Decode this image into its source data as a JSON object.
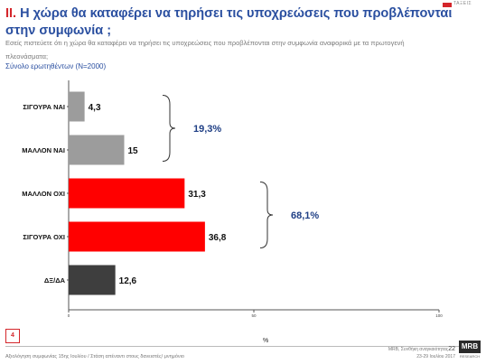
{
  "header": {
    "brand_word": "ΤΑΞΕΙΣ",
    "title_number": "II.",
    "title_text": "Η χώρα θα καταφέρει να τηρήσει τις υποχρεώσεις που προβλέπονται στην συμφωνία ;",
    "question": "Εσείς πιστεύετε ότι η χώρα θα καταφέρει να  τηρήσει τις υποχρεώσεις που προβλέπονται στην συμφωνία αναφορικά με τα  πρωτογενή",
    "subtitle_1": "πλεονάσματα;",
    "subtitle_2": "Σύνολο ερωτηθέντων (N=2000)"
  },
  "colors": {
    "title": "#2a4fa0",
    "accent_red": "#d4262b",
    "bar_gray": "#9c9c9c",
    "bar_red": "#ff0000",
    "bar_dark": "#3e3e3e"
  },
  "chart_data": {
    "type": "bar",
    "orientation": "horizontal",
    "categories": [
      "ΣΙΓΟΥΡΑ ΝΑΙ",
      "ΜΑΛΛΟΝ ΝΑΙ",
      "ΜΑΛΛΟΝ ΟΧΙ",
      "ΣΙΓΟΥΡΑ ΟΧΙ",
      "ΔΞ/ΔΑ"
    ],
    "values": [
      4.3,
      15,
      31.3,
      36.8,
      12.6
    ],
    "value_labels": [
      "4,3",
      "15",
      "31,3",
      "36,8",
      "12,6"
    ],
    "bar_colors": [
      "#9c9c9c",
      "#9c9c9c",
      "#ff0000",
      "#ff0000",
      "#3e3e3e"
    ],
    "xlim": [
      0,
      100
    ],
    "xticks": [
      "0",
      "50",
      "100"
    ],
    "xlabel": "%",
    "grid": false,
    "groups": [
      {
        "label": "19,3%",
        "from": 0,
        "to": 1
      },
      {
        "label": "68,1%",
        "from": 2,
        "to": 3
      }
    ]
  },
  "footer": {
    "page_number": "4",
    "left_text": "Αξιολόγηση συμφωνίας 15ης Ιουλίου / Στάση απέναντι στους δανειστές/ μνημόνιο",
    "right_line1": "MRB, Συνθήκη αναγκαιότητας",
    "right_page": "22",
    "right_line2": "23-29 Ιουλίου 2017",
    "logo_text": "MRB",
    "logo_sub": "RESEARCH"
  }
}
